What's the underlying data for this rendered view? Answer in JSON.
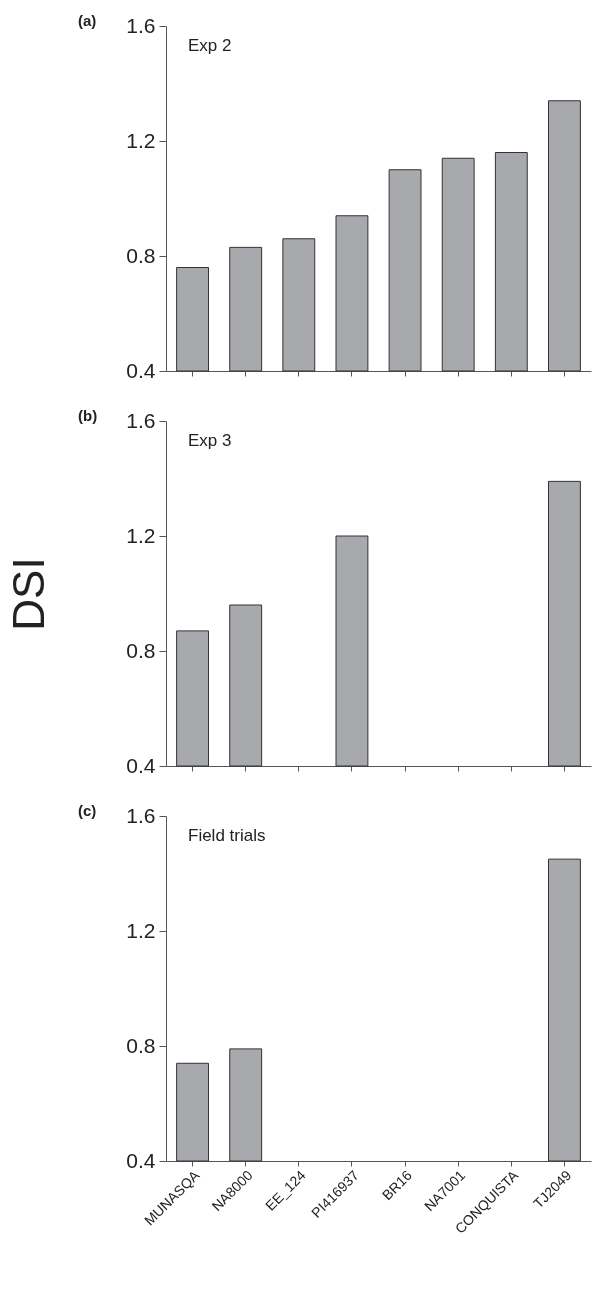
{
  "chart_data": [
    {
      "type": "bar",
      "title": "(a)",
      "annotations": [
        "Exp 2"
      ],
      "categories": [
        null,
        null,
        null,
        null,
        null,
        null,
        null,
        null
      ],
      "values": [
        0.76,
        0.83,
        0.86,
        0.94,
        1.1,
        1.14,
        1.16,
        1.34
      ],
      "color": "#a8a9ad",
      "ylim": [
        0.4,
        1.6
      ],
      "yticks": [
        0.4,
        0.8,
        1.2,
        1.6
      ],
      "tick_labels": "y"
    },
    {
      "type": "bar",
      "title": "(b)",
      "ylabel": "DSI",
      "annotations": [
        "Exp 3"
      ],
      "categories": [
        null,
        null,
        null,
        null,
        null,
        null,
        null,
        null
      ],
      "values": [
        0.87,
        0.96,
        null,
        1.2,
        null,
        null,
        null,
        1.39
      ],
      "color": "#a8a9ad",
      "ylim": [
        0.4,
        1.6
      ],
      "yticks": [
        0.4,
        0.8,
        1.2,
        1.6
      ],
      "tick_labels": "y"
    },
    {
      "type": "bar",
      "title": "(c)",
      "annotations": [
        "Field trials"
      ],
      "categories": [
        "MUNASQA",
        "NA8000",
        "EE_124",
        "PI416937",
        "BR16",
        "NA7001",
        "CONQUISTA",
        "TJ2049"
      ],
      "values": [
        0.74,
        0.79,
        null,
        null,
        null,
        null,
        null,
        1.45
      ],
      "color": "#a8a9ad",
      "ylim": [
        0.4,
        1.6
      ],
      "yticks": [
        0.4,
        0.8,
        1.2,
        1.6
      ]
    }
  ]
}
